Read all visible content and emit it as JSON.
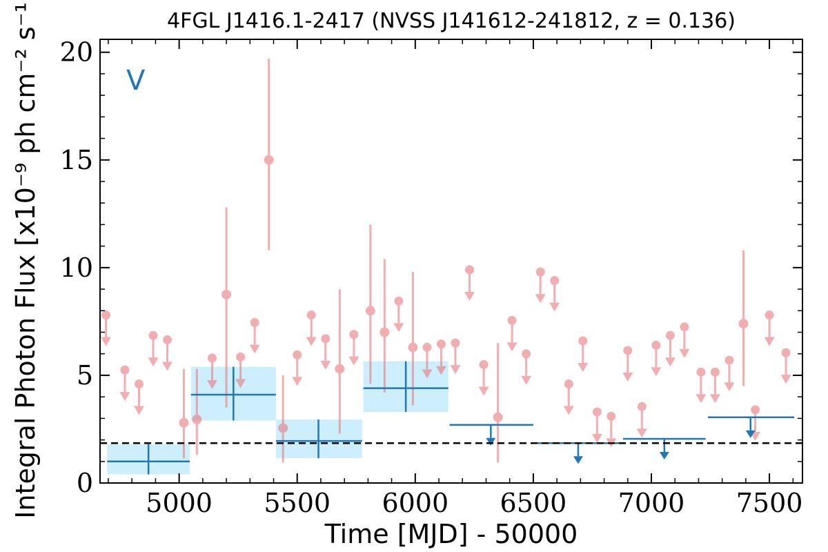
{
  "chart_data": {
    "type": "scatter",
    "title": "4FGL J1416.1-2417 (NVSS J141612-241812, z = 0.136)",
    "xlabel": "Time [MJD] - 50000",
    "ylabel": "Integral Photon Flux [x10⁻⁹ ph cm⁻² s⁻¹]",
    "panel_label": "V",
    "xlim": [
      4665,
      7640
    ],
    "ylim": [
      0,
      20.6
    ],
    "x_ticks": [
      5000,
      5500,
      6000,
      6500,
      7000,
      7500
    ],
    "x_tick_labels": [
      "5000",
      "5500",
      "6000",
      "6500",
      "7000",
      "7500"
    ],
    "y_ticks": [
      0,
      5,
      10,
      15,
      20
    ],
    "y_tick_labels": [
      "0",
      "5",
      "10",
      "15",
      "20"
    ],
    "baseline": 1.85,
    "colors": {
      "short_bins": "#e8787c",
      "long_bins": "#1f77b4",
      "long_band": "#cdeefc",
      "baseline": "#000000"
    },
    "short_bin_detections": [
      {
        "x": 5020,
        "y": 2.8,
        "lo": 1.15,
        "hi": 5.3
      },
      {
        "x": 5075,
        "y": 2.95,
        "lo": 1.3,
        "hi": 5.3
      },
      {
        "x": 5200,
        "y": 8.75,
        "lo": 3.5,
        "hi": 12.8
      },
      {
        "x": 5380,
        "y": 15.0,
        "lo": 10.8,
        "hi": 19.7
      },
      {
        "x": 5440,
        "y": 2.55,
        "lo": 0.95,
        "hi": 5.0
      },
      {
        "x": 5680,
        "y": 5.3,
        "lo": 2.3,
        "hi": 9.0
      },
      {
        "x": 5810,
        "y": 8.0,
        "lo": 4.6,
        "hi": 12.0
      },
      {
        "x": 5870,
        "y": 7.0,
        "lo": 4.2,
        "hi": 10.4
      },
      {
        "x": 5990,
        "y": 6.3,
        "lo": 3.6,
        "hi": 9.8
      },
      {
        "x": 6350,
        "y": 3.05,
        "lo": 0.95,
        "hi": 6.5
      },
      {
        "x": 7390,
        "y": 7.4,
        "lo": 4.5,
        "hi": 10.8
      }
    ],
    "short_bin_upper_limits": [
      {
        "x": 4690,
        "y": 7.8
      },
      {
        "x": 4770,
        "y": 5.25
      },
      {
        "x": 4830,
        "y": 4.6
      },
      {
        "x": 4890,
        "y": 6.85
      },
      {
        "x": 4950,
        "y": 6.65
      },
      {
        "x": 5140,
        "y": 5.8
      },
      {
        "x": 5260,
        "y": 5.85
      },
      {
        "x": 5320,
        "y": 7.45
      },
      {
        "x": 5500,
        "y": 5.95
      },
      {
        "x": 5560,
        "y": 7.8
      },
      {
        "x": 5620,
        "y": 6.7
      },
      {
        "x": 5740,
        "y": 6.9
      },
      {
        "x": 5930,
        "y": 8.45
      },
      {
        "x": 6050,
        "y": 6.3
      },
      {
        "x": 6110,
        "y": 6.45
      },
      {
        "x": 6170,
        "y": 6.5
      },
      {
        "x": 6230,
        "y": 9.9
      },
      {
        "x": 6290,
        "y": 5.5
      },
      {
        "x": 6410,
        "y": 7.55
      },
      {
        "x": 6470,
        "y": 6.0
      },
      {
        "x": 6530,
        "y": 9.8
      },
      {
        "x": 6590,
        "y": 9.4
      },
      {
        "x": 6650,
        "y": 4.6
      },
      {
        "x": 6710,
        "y": 6.6
      },
      {
        "x": 6770,
        "y": 3.3
      },
      {
        "x": 6830,
        "y": 3.1
      },
      {
        "x": 6900,
        "y": 6.15
      },
      {
        "x": 6960,
        "y": 3.55
      },
      {
        "x": 7020,
        "y": 6.4
      },
      {
        "x": 7080,
        "y": 6.85
      },
      {
        "x": 7140,
        "y": 7.25
      },
      {
        "x": 7210,
        "y": 5.15
      },
      {
        "x": 7270,
        "y": 5.15
      },
      {
        "x": 7330,
        "y": 5.7
      },
      {
        "x": 7440,
        "y": 3.4
      },
      {
        "x": 7500,
        "y": 7.8
      },
      {
        "x": 7570,
        "y": 6.05
      }
    ],
    "long_bin_detections": [
      {
        "x": 4870,
        "x_lo": 4695,
        "x_hi": 5045,
        "y": 1.0,
        "lo": 0.4,
        "hi": 1.8
      },
      {
        "x": 5230,
        "x_lo": 5050,
        "x_hi": 5410,
        "y": 4.1,
        "lo": 2.9,
        "hi": 5.4
      },
      {
        "x": 5590,
        "x_lo": 5410,
        "x_hi": 5775,
        "y": 1.95,
        "lo": 1.15,
        "hi": 2.95
      },
      {
        "x": 5960,
        "x_lo": 5780,
        "x_hi": 6140,
        "y": 4.4,
        "lo": 3.3,
        "hi": 5.65
      }
    ],
    "long_bin_upper_limits": [
      {
        "x": 6320,
        "x_lo": 6145,
        "x_hi": 6500,
        "y": 2.7
      },
      {
        "x": 6690,
        "x_lo": 6505,
        "x_hi": 6870,
        "y": 1.85
      },
      {
        "x": 7055,
        "x_lo": 6880,
        "x_hi": 7230,
        "y": 2.05
      },
      {
        "x": 7420,
        "x_lo": 7240,
        "x_hi": 7605,
        "y": 3.05
      }
    ]
  }
}
